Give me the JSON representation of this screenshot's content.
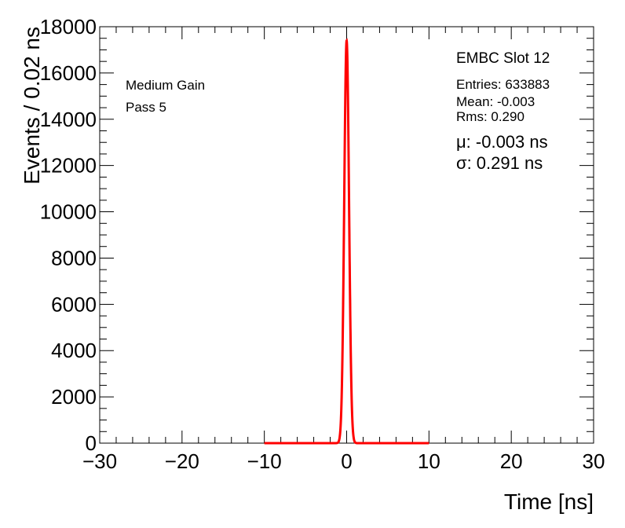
{
  "chart_data": {
    "type": "line",
    "xlabel": "Time [ns]",
    "ylabel": "Events / 0.02 ns",
    "xlim": [
      -30,
      30
    ],
    "ylim": [
      0,
      18000
    ],
    "x_ticks": [
      "−30",
      "−20",
      "−10",
      "0",
      "10",
      "20",
      "30"
    ],
    "y_ticks": [
      "0",
      "2000",
      "4000",
      "6000",
      "8000",
      "10000",
      "12000",
      "14000",
      "16000",
      "18000"
    ],
    "grid": false,
    "series": [
      {
        "color": "#000000",
        "style": "histogram",
        "x": [
          -1.0,
          -0.8,
          -0.6,
          -0.4,
          -0.2,
          -0.1,
          0.0,
          0.1,
          0.2,
          0.4,
          0.6,
          0.8,
          1.0
        ],
        "y": [
          0,
          300,
          2000,
          8000,
          14500,
          16900,
          17400,
          16900,
          14500,
          8000,
          2000,
          300,
          0
        ]
      },
      {
        "color": "#ff0000",
        "style": "gaussian-fit",
        "range": [
          -10,
          10
        ],
        "mu": -0.003,
        "sigma": 0.291,
        "peak": 17400
      }
    ],
    "annotations": {
      "left": [
        "Medium Gain",
        "Pass 5"
      ],
      "slot": "EMBC Slot 12",
      "stats": [
        "Entries: 633883",
        "Mean: -0.003",
        "Rms: 0.290"
      ],
      "fit": [
        "μ: -0.003 ns",
        "σ: 0.291 ns"
      ]
    }
  }
}
